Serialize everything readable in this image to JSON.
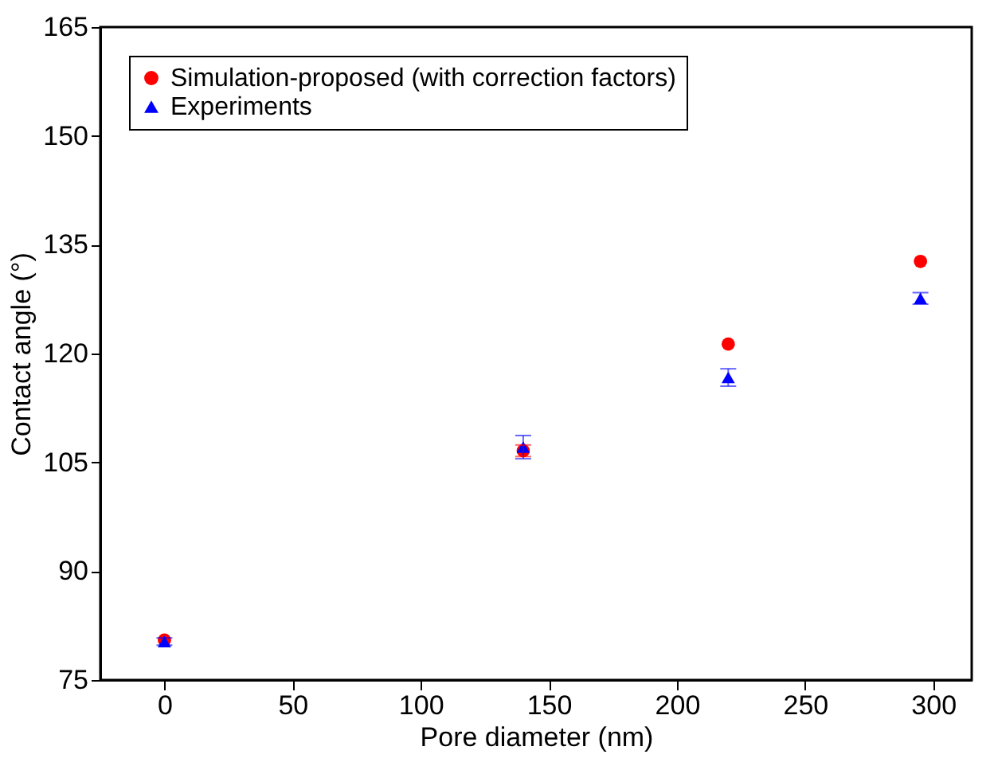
{
  "chart_data": {
    "type": "scatter",
    "xlabel": "Pore diameter (nm)",
    "ylabel": "Contact angle (°)",
    "x": [
      0,
      140,
      220,
      295
    ],
    "series": [
      {
        "name": "Simulation-proposed (with correction factors)",
        "color": "#ff0000",
        "marker": "circle",
        "values": [
          80.5,
          106.6,
          121.3,
          132.7
        ],
        "errors": [
          null,
          0.8,
          null,
          null
        ]
      },
      {
        "name": "Experiments",
        "color": "#0000ff",
        "marker": "triangle",
        "values": [
          80.3,
          107.1,
          116.7,
          127.6
        ],
        "errors": [
          0.5,
          1.6,
          1.2,
          0.8
        ]
      }
    ],
    "xlim": [
      -25,
      315
    ],
    "xticks": [
      0,
      50,
      100,
      150,
      200,
      250,
      300
    ],
    "ylim": [
      75,
      165
    ],
    "yticks": [
      75,
      90,
      105,
      120,
      135,
      150,
      165
    ],
    "grid": false,
    "legend": "top left"
  }
}
